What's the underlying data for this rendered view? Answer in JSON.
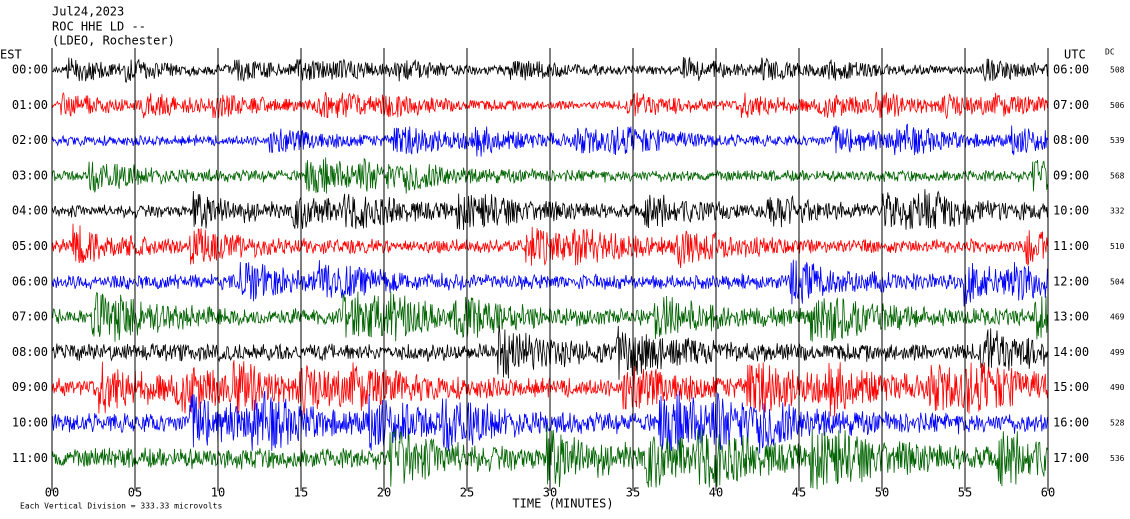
{
  "chart_data": {
    "type": "helicorder",
    "header_lines": [
      "Jul24,2023",
      "ROC HHE LD --",
      "(LDEO, Rochester)"
    ],
    "left_axis_label": "EST",
    "right_axis_label": "UTC",
    "dc_label": "DC",
    "xlabel": "TIME (MINUTES)",
    "footnote": "Each Vertical Division = 333.33 microvolts",
    "xlim": [
      0,
      60
    ],
    "xticks": [
      {
        "value": 0,
        "label": "00"
      },
      {
        "value": 5,
        "label": "05"
      },
      10,
      15,
      20,
      25,
      30,
      35,
      40,
      45,
      50,
      55,
      60
    ],
    "grid": true,
    "rows": [
      {
        "est": "00:00",
        "utc": "06:00",
        "dc": 508,
        "color": "#000000"
      },
      {
        "est": "01:00",
        "utc": "07:00",
        "dc": 506,
        "color": "#ff0000"
      },
      {
        "est": "02:00",
        "utc": "08:00",
        "dc": 539,
        "color": "#0000ff"
      },
      {
        "est": "03:00",
        "utc": "09:00",
        "dc": 568,
        "color": "#006400"
      },
      {
        "est": "04:00",
        "utc": "10:00",
        "dc": 332,
        "color": "#000000"
      },
      {
        "est": "05:00",
        "utc": "11:00",
        "dc": 510,
        "color": "#ff0000"
      },
      {
        "est": "06:00",
        "utc": "12:00",
        "dc": 504,
        "color": "#0000ff"
      },
      {
        "est": "07:00",
        "utc": "13:00",
        "dc": 469,
        "color": "#006400"
      },
      {
        "est": "08:00",
        "utc": "14:00",
        "dc": 499,
        "color": "#000000"
      },
      {
        "est": "09:00",
        "utc": "15:00",
        "dc": 490,
        "color": "#ff0000"
      },
      {
        "est": "10:00",
        "utc": "16:00",
        "dc": 528,
        "color": "#0000ff"
      },
      {
        "est": "11:00",
        "utc": "17:00",
        "dc": 536,
        "color": "#006400"
      }
    ]
  }
}
